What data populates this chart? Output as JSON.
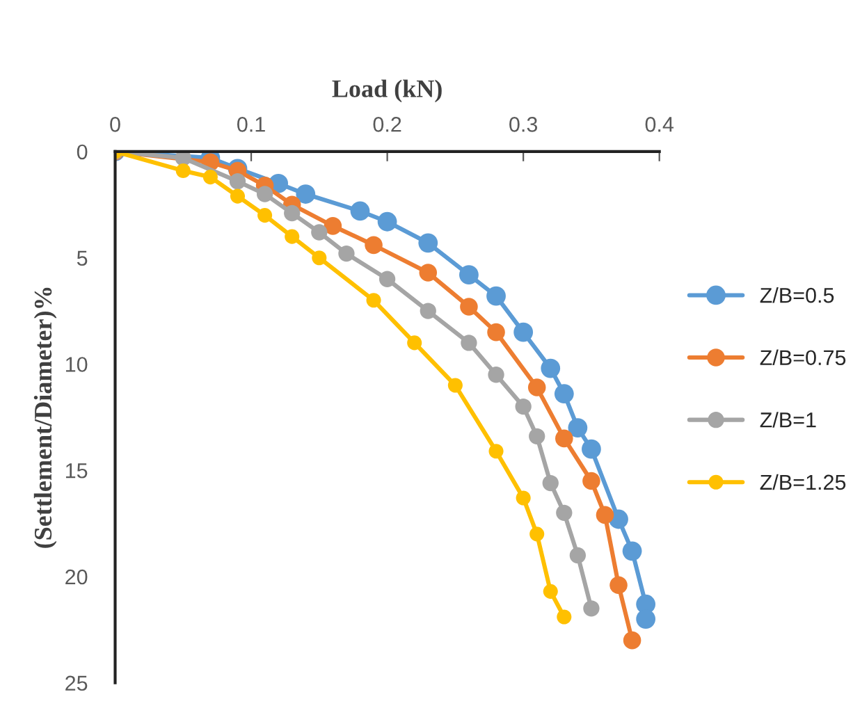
{
  "chart_data": {
    "type": "line",
    "xlabel": "Load (kN)",
    "ylabel": "(Settlement/Diameter)%",
    "xlim": [
      0,
      0.4
    ],
    "xticks": [
      0,
      0.1,
      0.2,
      0.3,
      0.4
    ],
    "ylim": [
      25,
      0
    ],
    "yticks": [
      0,
      5,
      10,
      15,
      20,
      25
    ],
    "grid": false,
    "legend": "right",
    "marker": "circle",
    "line_style": "solid",
    "series": [
      {
        "name": "Z/B=0.5",
        "color": "#5b9bd5",
        "x": [
          0,
          0.07,
          0.09,
          0.12,
          0.14,
          0.18,
          0.2,
          0.23,
          0.26,
          0.28,
          0.3,
          0.32,
          0.33,
          0.34,
          0.35,
          0.37,
          0.38,
          0.39,
          0.39
        ],
        "values": [
          0,
          0.3,
          0.8,
          1.5,
          2.0,
          2.8,
          3.3,
          4.3,
          5.8,
          6.8,
          8.5,
          10.2,
          11.4,
          13.0,
          14.0,
          17.3,
          18.8,
          21.3,
          22.0
        ]
      },
      {
        "name": "Z/B=0.75",
        "color": "#ed7d31",
        "x": [
          0,
          0.07,
          0.09,
          0.11,
          0.13,
          0.16,
          0.19,
          0.23,
          0.26,
          0.28,
          0.31,
          0.33,
          0.35,
          0.36,
          0.37,
          0.38
        ],
        "values": [
          0,
          0.5,
          0.9,
          1.6,
          2.5,
          3.5,
          4.4,
          5.7,
          7.3,
          8.5,
          11.1,
          13.5,
          15.5,
          17.1,
          20.4,
          23.0
        ]
      },
      {
        "name": "Z/B=1",
        "color": "#a5a5a5",
        "x": [
          0,
          0.05,
          0.09,
          0.11,
          0.13,
          0.15,
          0.17,
          0.2,
          0.23,
          0.26,
          0.28,
          0.3,
          0.31,
          0.32,
          0.33,
          0.34,
          0.35
        ],
        "values": [
          0,
          0.3,
          1.4,
          2.0,
          2.9,
          3.8,
          4.8,
          6.0,
          7.5,
          9.0,
          10.5,
          12.0,
          13.4,
          15.6,
          17.0,
          19.0,
          21.5
        ]
      },
      {
        "name": "Z/B=1.25",
        "color": "#ffc000",
        "x": [
          0,
          0.05,
          0.07,
          0.09,
          0.11,
          0.13,
          0.15,
          0.19,
          0.22,
          0.25,
          0.28,
          0.3,
          0.31,
          0.32,
          0.33
        ],
        "values": [
          0,
          0.9,
          1.2,
          2.1,
          3.0,
          4.0,
          5.0,
          7.0,
          9.0,
          11.0,
          14.1,
          16.3,
          18.0,
          20.7,
          21.9
        ]
      }
    ]
  }
}
